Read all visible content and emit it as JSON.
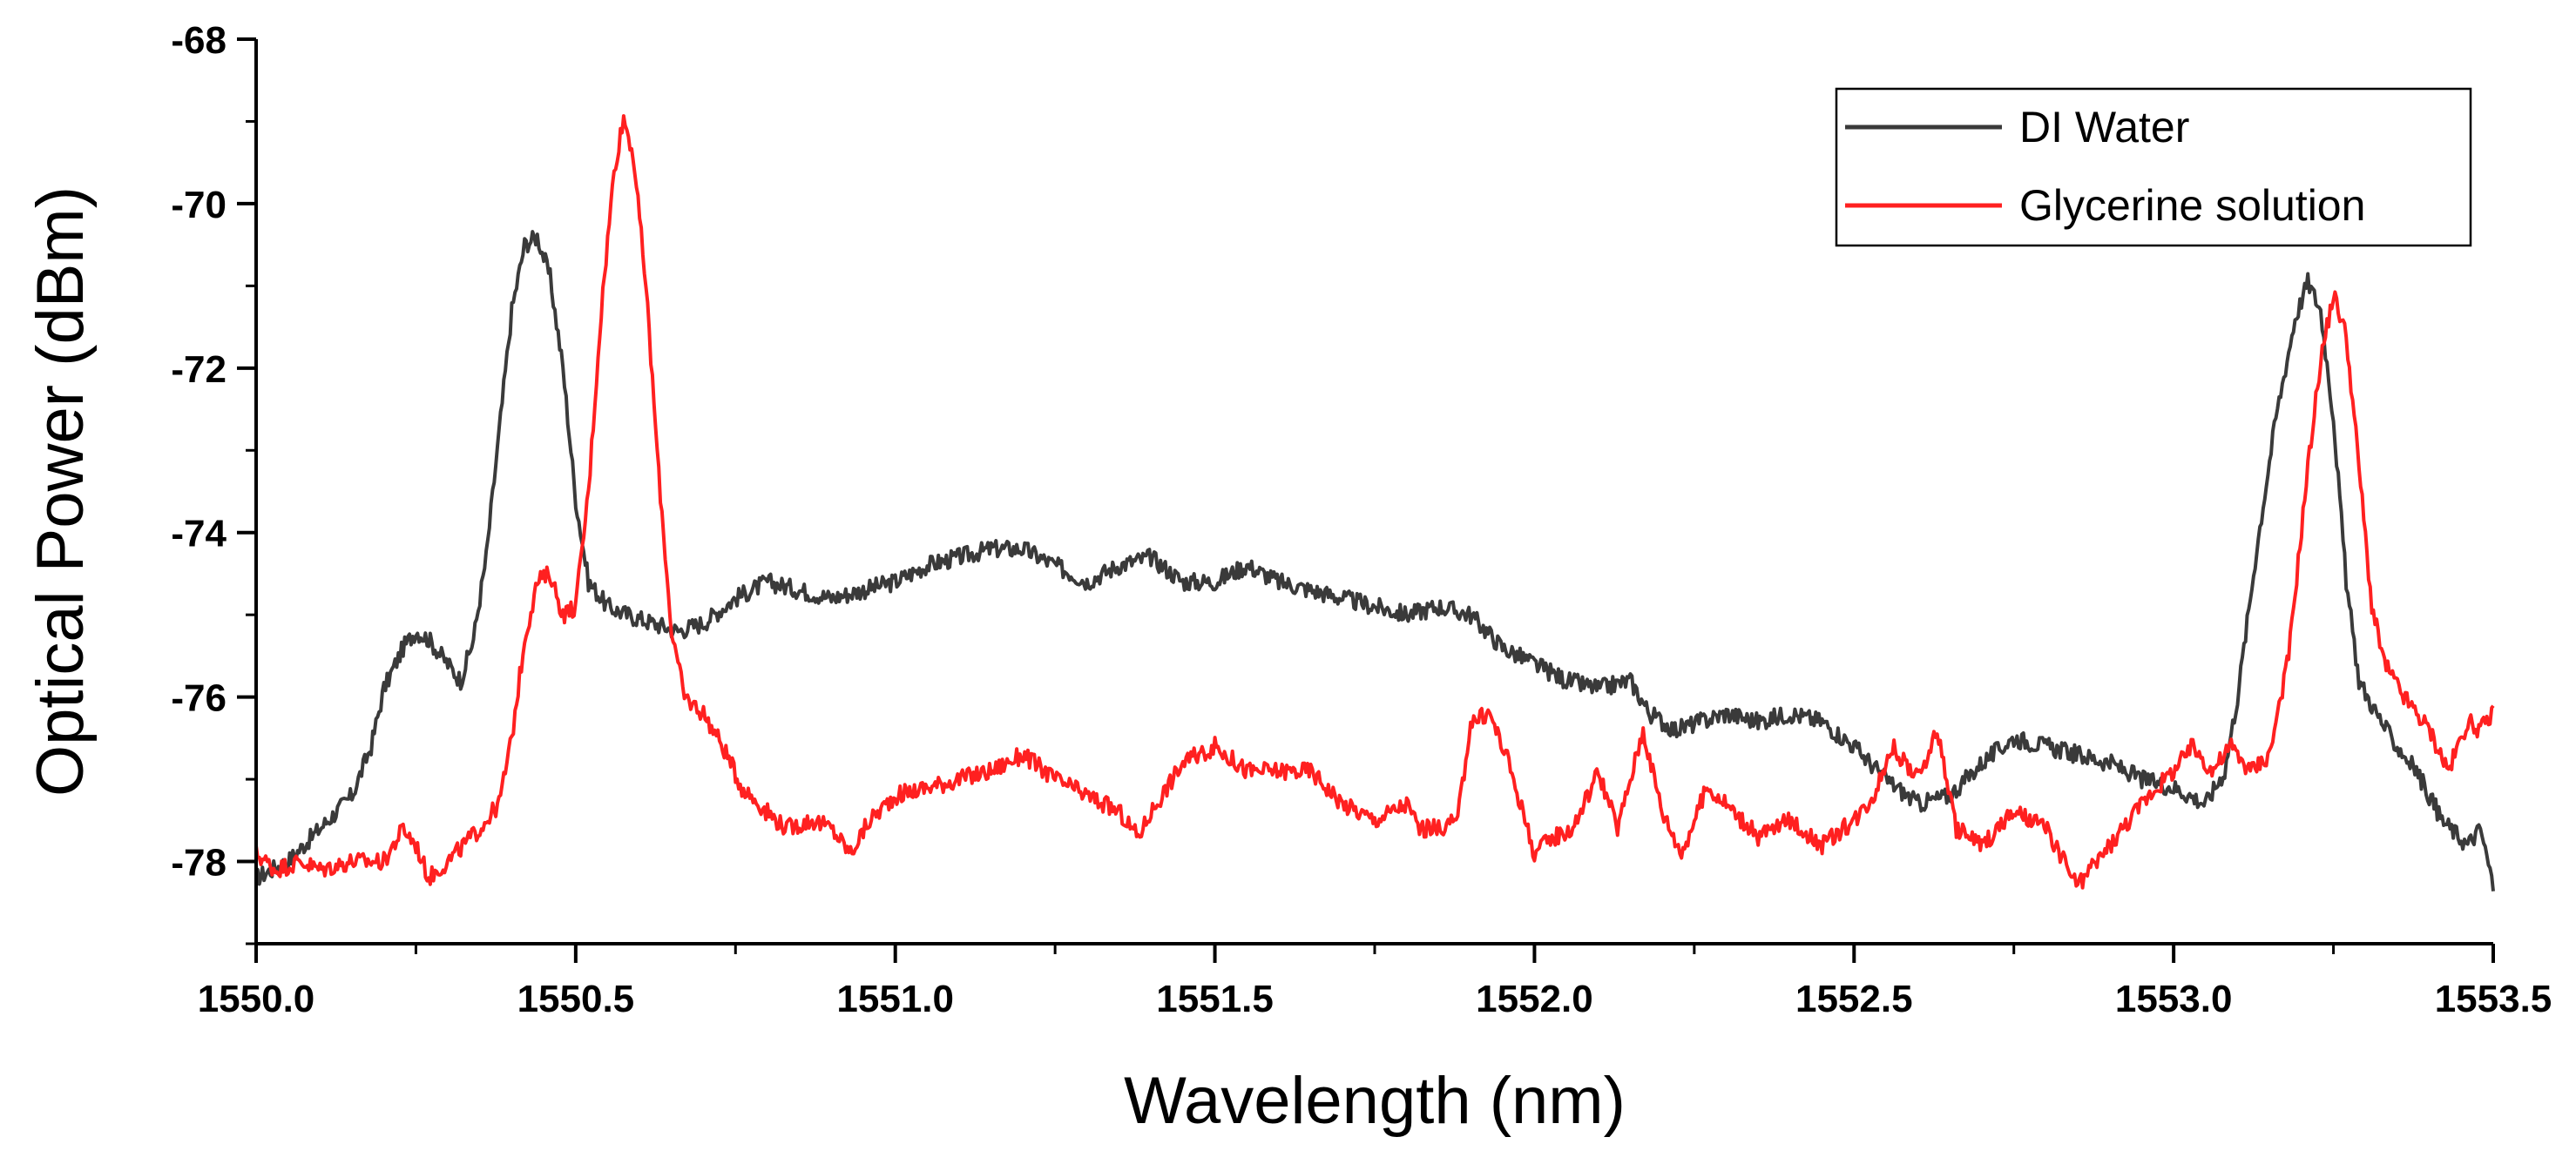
{
  "chart_data": {
    "type": "line",
    "title": "",
    "xlabel": "Wavelength (nm)",
    "ylabel": "Optical Power (dBm)",
    "xlim": [
      1550.0,
      1553.5
    ],
    "ylim": [
      -79.0,
      -68.0
    ],
    "x_ticks": [
      1550.0,
      1550.5,
      1551.0,
      1551.5,
      1552.0,
      1552.5,
      1553.0,
      1553.5
    ],
    "x_tick_labels": [
      "1550.0",
      "1550.5",
      "1551.0",
      "1551.5",
      "1552.0",
      "1552.5",
      "1553.0",
      "1553.5"
    ],
    "y_ticks": [
      -78,
      -76,
      -74,
      -72,
      -70,
      -68
    ],
    "y_tick_labels": [
      "-78",
      "-76",
      "-74",
      "-72",
      "-70",
      "-68"
    ],
    "grid": false,
    "legend": {
      "position": "top-right"
    },
    "series": [
      {
        "name": "DI Water",
        "color": "#3a3a3a",
        "points": [
          [
            1550.0,
            -78.2
          ],
          [
            1550.05,
            -78.0
          ],
          [
            1550.1,
            -77.6
          ],
          [
            1550.15,
            -77.2
          ],
          [
            1550.18,
            -76.6
          ],
          [
            1550.2,
            -75.9
          ],
          [
            1550.23,
            -75.4
          ],
          [
            1550.25,
            -75.2
          ],
          [
            1550.27,
            -75.3
          ],
          [
            1550.3,
            -75.6
          ],
          [
            1550.32,
            -75.8
          ],
          [
            1550.34,
            -75.3
          ],
          [
            1550.36,
            -74.3
          ],
          [
            1550.38,
            -72.8
          ],
          [
            1550.4,
            -71.3
          ],
          [
            1550.42,
            -70.5
          ],
          [
            1550.44,
            -70.4
          ],
          [
            1550.46,
            -70.9
          ],
          [
            1550.48,
            -72.0
          ],
          [
            1550.5,
            -73.6
          ],
          [
            1550.52,
            -74.6
          ],
          [
            1550.55,
            -74.9
          ],
          [
            1550.58,
            -75.0
          ],
          [
            1550.62,
            -75.1
          ],
          [
            1550.66,
            -75.2
          ],
          [
            1550.7,
            -75.1
          ],
          [
            1550.75,
            -74.8
          ],
          [
            1550.8,
            -74.6
          ],
          [
            1550.85,
            -74.7
          ],
          [
            1550.9,
            -74.8
          ],
          [
            1550.95,
            -74.7
          ],
          [
            1551.0,
            -74.6
          ],
          [
            1551.05,
            -74.4
          ],
          [
            1551.1,
            -74.3
          ],
          [
            1551.15,
            -74.2
          ],
          [
            1551.2,
            -74.2
          ],
          [
            1551.25,
            -74.4
          ],
          [
            1551.3,
            -74.6
          ],
          [
            1551.35,
            -74.4
          ],
          [
            1551.4,
            -74.3
          ],
          [
            1551.45,
            -74.6
          ],
          [
            1551.5,
            -74.6
          ],
          [
            1551.55,
            -74.4
          ],
          [
            1551.6,
            -74.6
          ],
          [
            1551.65,
            -74.7
          ],
          [
            1551.7,
            -74.8
          ],
          [
            1551.75,
            -74.9
          ],
          [
            1551.8,
            -75.0
          ],
          [
            1551.85,
            -74.9
          ],
          [
            1551.9,
            -75.0
          ],
          [
            1551.95,
            -75.4
          ],
          [
            1552.0,
            -75.6
          ],
          [
            1552.05,
            -75.8
          ],
          [
            1552.1,
            -75.9
          ],
          [
            1552.15,
            -75.8
          ],
          [
            1552.18,
            -76.2
          ],
          [
            1552.22,
            -76.4
          ],
          [
            1552.26,
            -76.3
          ],
          [
            1552.3,
            -76.2
          ],
          [
            1552.35,
            -76.3
          ],
          [
            1552.4,
            -76.2
          ],
          [
            1552.45,
            -76.3
          ],
          [
            1552.5,
            -76.6
          ],
          [
            1552.55,
            -77.0
          ],
          [
            1552.6,
            -77.3
          ],
          [
            1552.65,
            -77.2
          ],
          [
            1552.7,
            -76.8
          ],
          [
            1552.75,
            -76.5
          ],
          [
            1552.8,
            -76.6
          ],
          [
            1552.85,
            -76.7
          ],
          [
            1552.9,
            -76.8
          ],
          [
            1552.95,
            -77.0
          ],
          [
            1553.0,
            -77.1
          ],
          [
            1553.05,
            -77.3
          ],
          [
            1553.08,
            -76.9
          ],
          [
            1553.1,
            -76.0
          ],
          [
            1553.13,
            -74.2
          ],
          [
            1553.16,
            -72.6
          ],
          [
            1553.19,
            -71.4
          ],
          [
            1553.21,
            -70.95
          ],
          [
            1553.23,
            -71.3
          ],
          [
            1553.25,
            -72.6
          ],
          [
            1553.27,
            -74.6
          ],
          [
            1553.29,
            -75.8
          ],
          [
            1553.31,
            -76.1
          ],
          [
            1553.34,
            -76.5
          ],
          [
            1553.38,
            -76.9
          ],
          [
            1553.42,
            -77.5
          ],
          [
            1553.46,
            -77.8
          ],
          [
            1553.48,
            -77.6
          ],
          [
            1553.5,
            -78.3
          ]
        ]
      },
      {
        "name": "Glycerine solution",
        "color": "#ff2020",
        "points": [
          [
            1550.0,
            -77.9
          ],
          [
            1550.03,
            -78.1
          ],
          [
            1550.07,
            -78.0
          ],
          [
            1550.1,
            -78.1
          ],
          [
            1550.15,
            -78.0
          ],
          [
            1550.2,
            -78.0
          ],
          [
            1550.23,
            -77.6
          ],
          [
            1550.25,
            -77.8
          ],
          [
            1550.27,
            -78.2
          ],
          [
            1550.3,
            -78.0
          ],
          [
            1550.35,
            -77.6
          ],
          [
            1550.38,
            -77.3
          ],
          [
            1550.4,
            -76.5
          ],
          [
            1550.42,
            -75.3
          ],
          [
            1550.44,
            -74.6
          ],
          [
            1550.46,
            -74.5
          ],
          [
            1550.48,
            -75.0
          ],
          [
            1550.5,
            -74.9
          ],
          [
            1550.52,
            -73.5
          ],
          [
            1550.54,
            -71.3
          ],
          [
            1550.56,
            -69.6
          ],
          [
            1550.575,
            -68.95
          ],
          [
            1550.59,
            -69.4
          ],
          [
            1550.61,
            -71.0
          ],
          [
            1550.63,
            -73.3
          ],
          [
            1550.65,
            -75.2
          ],
          [
            1550.67,
            -76.0
          ],
          [
            1550.7,
            -76.2
          ],
          [
            1550.73,
            -76.6
          ],
          [
            1550.76,
            -77.1
          ],
          [
            1550.8,
            -77.4
          ],
          [
            1550.83,
            -77.6
          ],
          [
            1550.87,
            -77.5
          ],
          [
            1550.9,
            -77.6
          ],
          [
            1550.93,
            -77.9
          ],
          [
            1550.96,
            -77.5
          ],
          [
            1551.0,
            -77.2
          ],
          [
            1551.05,
            -77.1
          ],
          [
            1551.1,
            -77.0
          ],
          [
            1551.15,
            -76.9
          ],
          [
            1551.2,
            -76.7
          ],
          [
            1551.25,
            -77.0
          ],
          [
            1551.3,
            -77.2
          ],
          [
            1551.35,
            -77.4
          ],
          [
            1551.38,
            -77.7
          ],
          [
            1551.4,
            -77.4
          ],
          [
            1551.45,
            -76.8
          ],
          [
            1551.5,
            -76.6
          ],
          [
            1551.55,
            -76.9
          ],
          [
            1551.6,
            -76.9
          ],
          [
            1551.65,
            -76.9
          ],
          [
            1551.7,
            -77.3
          ],
          [
            1551.75,
            -77.5
          ],
          [
            1551.8,
            -77.3
          ],
          [
            1551.82,
            -77.6
          ],
          [
            1551.85,
            -77.6
          ],
          [
            1551.88,
            -77.5
          ],
          [
            1551.9,
            -76.3
          ],
          [
            1551.93,
            -76.2
          ],
          [
            1551.96,
            -76.8
          ],
          [
            1552.0,
            -77.9
          ],
          [
            1552.03,
            -77.7
          ],
          [
            1552.06,
            -77.6
          ],
          [
            1552.1,
            -76.9
          ],
          [
            1552.13,
            -77.6
          ],
          [
            1552.17,
            -76.4
          ],
          [
            1552.2,
            -77.4
          ],
          [
            1552.23,
            -77.9
          ],
          [
            1552.27,
            -77.1
          ],
          [
            1552.3,
            -77.3
          ],
          [
            1552.35,
            -77.7
          ],
          [
            1552.4,
            -77.5
          ],
          [
            1552.45,
            -77.8
          ],
          [
            1552.5,
            -77.5
          ],
          [
            1552.53,
            -77.2
          ],
          [
            1552.56,
            -76.6
          ],
          [
            1552.6,
            -77.0
          ],
          [
            1552.63,
            -76.4
          ],
          [
            1552.66,
            -77.6
          ],
          [
            1552.7,
            -77.8
          ],
          [
            1552.75,
            -77.4
          ],
          [
            1552.8,
            -77.6
          ],
          [
            1552.85,
            -78.3
          ],
          [
            1552.88,
            -78.0
          ],
          [
            1552.92,
            -77.6
          ],
          [
            1552.96,
            -77.2
          ],
          [
            1553.0,
            -76.9
          ],
          [
            1553.03,
            -76.6
          ],
          [
            1553.06,
            -76.9
          ],
          [
            1553.09,
            -76.6
          ],
          [
            1553.12,
            -76.9
          ],
          [
            1553.15,
            -76.7
          ],
          [
            1553.18,
            -75.5
          ],
          [
            1553.21,
            -73.2
          ],
          [
            1553.23,
            -71.9
          ],
          [
            1553.25,
            -71.1
          ],
          [
            1553.27,
            -71.6
          ],
          [
            1553.29,
            -73.2
          ],
          [
            1553.31,
            -74.9
          ],
          [
            1553.33,
            -75.6
          ],
          [
            1553.36,
            -76.0
          ],
          [
            1553.4,
            -76.4
          ],
          [
            1553.43,
            -76.9
          ],
          [
            1553.46,
            -76.3
          ],
          [
            1553.48,
            -76.4
          ],
          [
            1553.5,
            -76.2
          ]
        ]
      }
    ]
  }
}
